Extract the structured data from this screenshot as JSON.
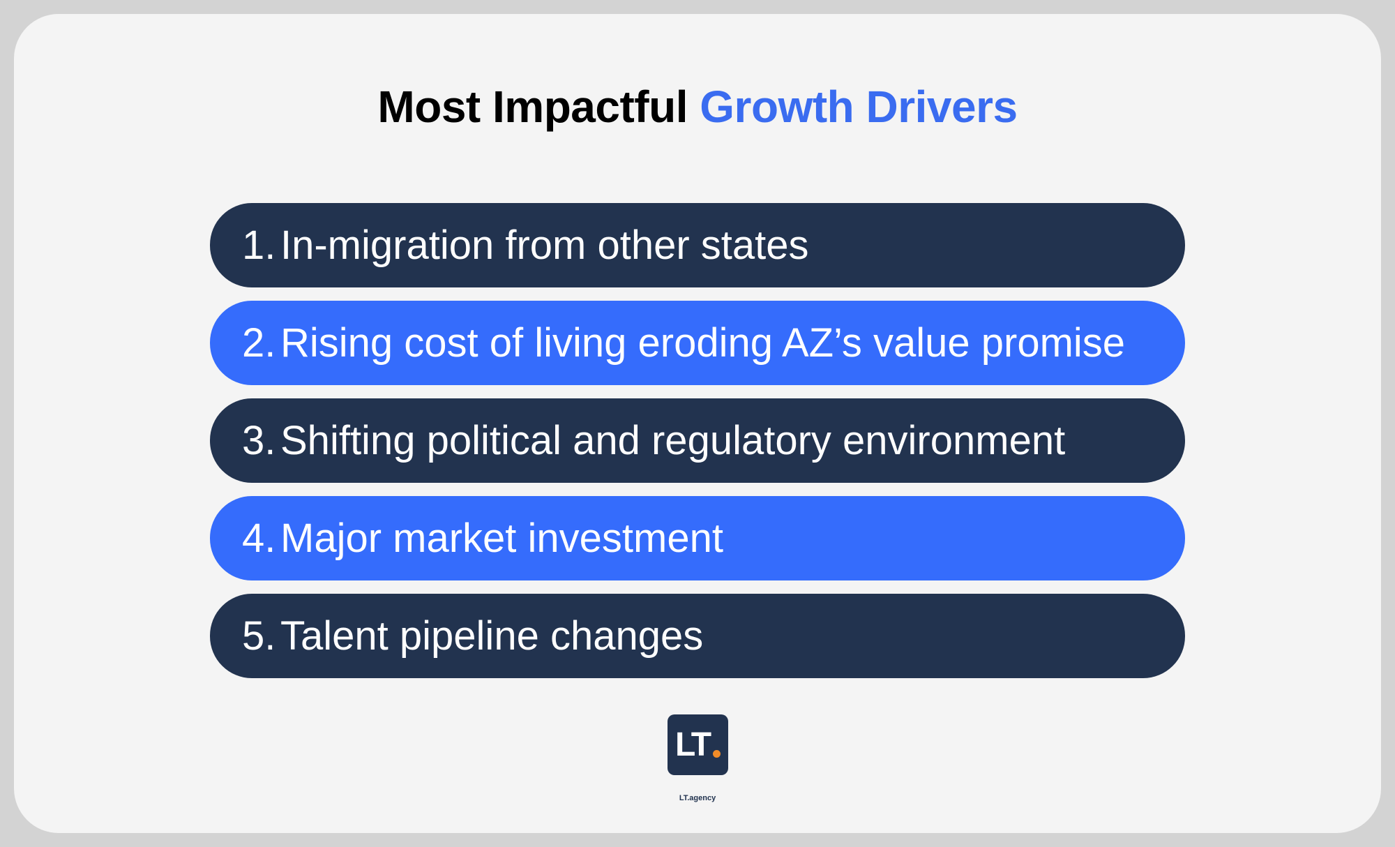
{
  "header": {
    "title_plain": "Most Impactful",
    "title_accent": "Growth Drivers"
  },
  "items": [
    {
      "number": "1.",
      "text": "In-migration from other states"
    },
    {
      "number": "2.",
      "text": "Rising cost of living eroding AZ’s value promise"
    },
    {
      "number": "3.",
      "text": "Shifting political and regulatory environment"
    },
    {
      "number": "4.",
      "text": "Major market investment"
    },
    {
      "number": "5.",
      "text": "Talent pipeline changes"
    }
  ],
  "footer": {
    "logo": "LT",
    "caption": "LT.agency"
  }
}
